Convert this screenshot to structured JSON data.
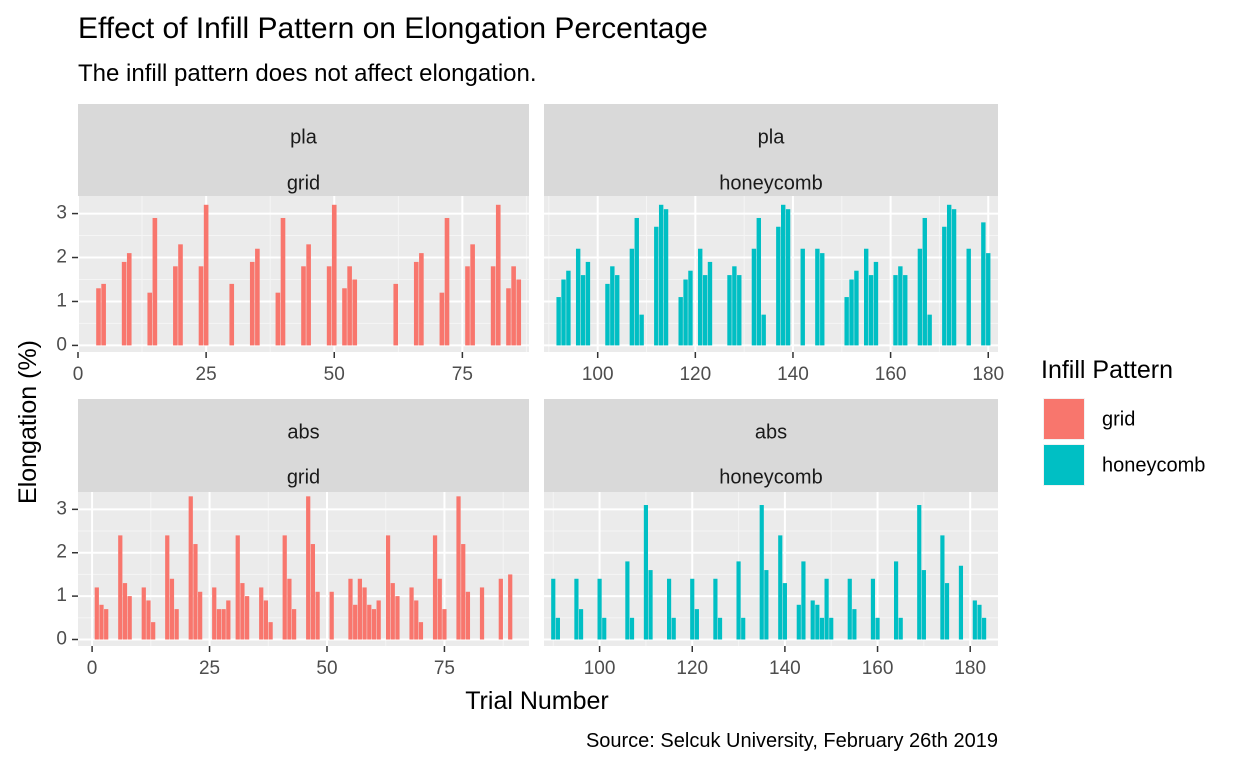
{
  "chart_data": {
    "type": "bar",
    "title": "Effect of Infill Pattern on Elongation Percentage",
    "subtitle": "The infill pattern does not affect elongation.",
    "caption": "Source: Selcuk University, February 26th 2019",
    "xlabel": "Trial Number",
    "ylabel": "Elongation (%)",
    "legend": {
      "title": "Infill Pattern",
      "placement": "right",
      "entries": [
        {
          "name": "grid",
          "color": "#F8766D"
        },
        {
          "name": "honeycomb",
          "color": "#00BFC4"
        }
      ]
    },
    "grid": true,
    "ylim": [
      -0.15,
      3.4
    ],
    "y_ticks": [
      0,
      1,
      2,
      3
    ],
    "panels": [
      {
        "row": "pla",
        "col": "grid",
        "fill": "grid",
        "xlim": [
          0,
          88
        ],
        "x_ticks": [
          0,
          25,
          50,
          75
        ],
        "bars": [
          {
            "x": 4,
            "y": 1.3
          },
          {
            "x": 5,
            "y": 1.4
          },
          {
            "x": 9,
            "y": 1.9
          },
          {
            "x": 10,
            "y": 2.1
          },
          {
            "x": 14,
            "y": 1.2
          },
          {
            "x": 15,
            "y": 2.9
          },
          {
            "x": 19,
            "y": 1.8
          },
          {
            "x": 20,
            "y": 2.3
          },
          {
            "x": 24,
            "y": 1.8
          },
          {
            "x": 25,
            "y": 3.2
          },
          {
            "x": 30,
            "y": 1.4
          },
          {
            "x": 34,
            "y": 1.9
          },
          {
            "x": 35,
            "y": 2.2
          },
          {
            "x": 39,
            "y": 1.2
          },
          {
            "x": 40,
            "y": 2.9
          },
          {
            "x": 44,
            "y": 1.8
          },
          {
            "x": 45,
            "y": 2.3
          },
          {
            "x": 49,
            "y": 1.8
          },
          {
            "x": 50,
            "y": 3.2
          },
          {
            "x": 52,
            "y": 1.3
          },
          {
            "x": 53,
            "y": 1.8
          },
          {
            "x": 54,
            "y": 1.5
          },
          {
            "x": 62,
            "y": 1.4
          },
          {
            "x": 66,
            "y": 1.9
          },
          {
            "x": 67,
            "y": 2.1
          },
          {
            "x": 71,
            "y": 1.2
          },
          {
            "x": 72,
            "y": 2.9
          },
          {
            "x": 76,
            "y": 1.8
          },
          {
            "x": 77,
            "y": 2.3
          },
          {
            "x": 81,
            "y": 1.8
          },
          {
            "x": 82,
            "y": 3.2
          },
          {
            "x": 84,
            "y": 1.3
          },
          {
            "x": 85,
            "y": 1.8
          },
          {
            "x": 86,
            "y": 1.5
          }
        ]
      },
      {
        "row": "pla",
        "col": "honeycomb",
        "fill": "honeycomb",
        "xlim": [
          89,
          182
        ],
        "x_ticks": [
          100,
          120,
          140,
          160,
          180
        ],
        "bars": [
          {
            "x": 92,
            "y": 1.1
          },
          {
            "x": 93,
            "y": 1.5
          },
          {
            "x": 94,
            "y": 1.7
          },
          {
            "x": 96,
            "y": 2.2
          },
          {
            "x": 97,
            "y": 1.6
          },
          {
            "x": 98,
            "y": 1.9
          },
          {
            "x": 102,
            "y": 1.4
          },
          {
            "x": 103,
            "y": 1.8
          },
          {
            "x": 104,
            "y": 1.6
          },
          {
            "x": 107,
            "y": 2.2
          },
          {
            "x": 108,
            "y": 2.9
          },
          {
            "x": 109,
            "y": 0.7
          },
          {
            "x": 112,
            "y": 2.7
          },
          {
            "x": 113,
            "y": 3.2
          },
          {
            "x": 114,
            "y": 3.1
          },
          {
            "x": 117,
            "y": 1.1
          },
          {
            "x": 118,
            "y": 1.5
          },
          {
            "x": 119,
            "y": 1.7
          },
          {
            "x": 121,
            "y": 2.2
          },
          {
            "x": 122,
            "y": 1.6
          },
          {
            "x": 123,
            "y": 1.9
          },
          {
            "x": 127,
            "y": 1.6
          },
          {
            "x": 128,
            "y": 1.8
          },
          {
            "x": 129,
            "y": 1.6
          },
          {
            "x": 132,
            "y": 2.2
          },
          {
            "x": 133,
            "y": 2.9
          },
          {
            "x": 134,
            "y": 0.7
          },
          {
            "x": 137,
            "y": 2.7
          },
          {
            "x": 138,
            "y": 3.2
          },
          {
            "x": 139,
            "y": 3.1
          },
          {
            "x": 142,
            "y": 2.2
          },
          {
            "x": 145,
            "y": 2.2
          },
          {
            "x": 146,
            "y": 2.1
          },
          {
            "x": 151,
            "y": 1.1
          },
          {
            "x": 152,
            "y": 1.5
          },
          {
            "x": 153,
            "y": 1.7
          },
          {
            "x": 155,
            "y": 2.2
          },
          {
            "x": 156,
            "y": 1.6
          },
          {
            "x": 157,
            "y": 1.9
          },
          {
            "x": 161,
            "y": 1.6
          },
          {
            "x": 162,
            "y": 1.8
          },
          {
            "x": 163,
            "y": 1.6
          },
          {
            "x": 166,
            "y": 2.2
          },
          {
            "x": 167,
            "y": 2.9
          },
          {
            "x": 168,
            "y": 0.7
          },
          {
            "x": 171,
            "y": 2.7
          },
          {
            "x": 172,
            "y": 3.2
          },
          {
            "x": 173,
            "y": 3.1
          },
          {
            "x": 176,
            "y": 2.2
          },
          {
            "x": 179,
            "y": 2.8
          },
          {
            "x": 180,
            "y": 2.1
          }
        ]
      },
      {
        "row": "abs",
        "col": "grid",
        "fill": "grid",
        "xlim": [
          -3,
          93
        ],
        "x_ticks": [
          0,
          25,
          50,
          75
        ],
        "bars": [
          {
            "x": 1,
            "y": 1.2
          },
          {
            "x": 2,
            "y": 0.8
          },
          {
            "x": 3,
            "y": 0.7
          },
          {
            "x": 6,
            "y": 2.4
          },
          {
            "x": 7,
            "y": 1.3
          },
          {
            "x": 8,
            "y": 1.0
          },
          {
            "x": 11,
            "y": 1.2
          },
          {
            "x": 12,
            "y": 0.9
          },
          {
            "x": 13,
            "y": 0.4
          },
          {
            "x": 16,
            "y": 2.4
          },
          {
            "x": 17,
            "y": 1.4
          },
          {
            "x": 18,
            "y": 0.7
          },
          {
            "x": 21,
            "y": 3.3
          },
          {
            "x": 22,
            "y": 2.2
          },
          {
            "x": 23,
            "y": 1.1
          },
          {
            "x": 26,
            "y": 1.2
          },
          {
            "x": 27,
            "y": 0.7
          },
          {
            "x": 28,
            "y": 0.7
          },
          {
            "x": 29,
            "y": 0.9
          },
          {
            "x": 31,
            "y": 2.4
          },
          {
            "x": 32,
            "y": 1.3
          },
          {
            "x": 33,
            "y": 1.0
          },
          {
            "x": 36,
            "y": 1.2
          },
          {
            "x": 37,
            "y": 0.9
          },
          {
            "x": 38,
            "y": 0.4
          },
          {
            "x": 41,
            "y": 2.4
          },
          {
            "x": 42,
            "y": 1.4
          },
          {
            "x": 43,
            "y": 0.7
          },
          {
            "x": 46,
            "y": 3.3
          },
          {
            "x": 47,
            "y": 2.2
          },
          {
            "x": 48,
            "y": 1.1
          },
          {
            "x": 51,
            "y": 1.1
          },
          {
            "x": 55,
            "y": 1.4
          },
          {
            "x": 56,
            "y": 0.8
          },
          {
            "x": 57,
            "y": 1.4
          },
          {
            "x": 58,
            "y": 1.2
          },
          {
            "x": 59,
            "y": 0.8
          },
          {
            "x": 60,
            "y": 0.7
          },
          {
            "x": 61,
            "y": 0.9
          },
          {
            "x": 63,
            "y": 2.4
          },
          {
            "x": 64,
            "y": 1.3
          },
          {
            "x": 65,
            "y": 1.0
          },
          {
            "x": 68,
            "y": 1.2
          },
          {
            "x": 69,
            "y": 0.9
          },
          {
            "x": 70,
            "y": 0.4
          },
          {
            "x": 73,
            "y": 2.4
          },
          {
            "x": 74,
            "y": 1.4
          },
          {
            "x": 75,
            "y": 0.7
          },
          {
            "x": 78,
            "y": 3.3
          },
          {
            "x": 79,
            "y": 2.2
          },
          {
            "x": 80,
            "y": 1.1
          },
          {
            "x": 83,
            "y": 1.2
          },
          {
            "x": 87,
            "y": 1.4
          },
          {
            "x": 89,
            "y": 1.5
          }
        ]
      },
      {
        "row": "abs",
        "col": "honeycomb",
        "fill": "honeycomb",
        "xlim": [
          88,
          186
        ],
        "x_ticks": [
          100,
          120,
          140,
          160,
          180
        ],
        "bars": [
          {
            "x": 90,
            "y": 1.4
          },
          {
            "x": 91,
            "y": 0.5
          },
          {
            "x": 95,
            "y": 1.4
          },
          {
            "x": 96,
            "y": 0.7
          },
          {
            "x": 100,
            "y": 1.4
          },
          {
            "x": 101,
            "y": 0.5
          },
          {
            "x": 106,
            "y": 1.8
          },
          {
            "x": 107,
            "y": 0.5
          },
          {
            "x": 110,
            "y": 3.1
          },
          {
            "x": 111,
            "y": 1.6
          },
          {
            "x": 115,
            "y": 1.4
          },
          {
            "x": 116,
            "y": 0.5
          },
          {
            "x": 120,
            "y": 1.4
          },
          {
            "x": 121,
            "y": 0.7
          },
          {
            "x": 125,
            "y": 1.4
          },
          {
            "x": 126,
            "y": 0.5
          },
          {
            "x": 130,
            "y": 1.8
          },
          {
            "x": 131,
            "y": 0.5
          },
          {
            "x": 135,
            "y": 3.1
          },
          {
            "x": 136,
            "y": 1.6
          },
          {
            "x": 139,
            "y": 2.4
          },
          {
            "x": 140,
            "y": 1.3
          },
          {
            "x": 143,
            "y": 0.8
          },
          {
            "x": 144,
            "y": 1.8
          },
          {
            "x": 146,
            "y": 0.9
          },
          {
            "x": 147,
            "y": 0.8
          },
          {
            "x": 148,
            "y": 0.5
          },
          {
            "x": 149,
            "y": 1.4
          },
          {
            "x": 150,
            "y": 0.5
          },
          {
            "x": 154,
            "y": 1.4
          },
          {
            "x": 155,
            "y": 0.7
          },
          {
            "x": 159,
            "y": 1.4
          },
          {
            "x": 160,
            "y": 0.5
          },
          {
            "x": 164,
            "y": 1.8
          },
          {
            "x": 165,
            "y": 0.5
          },
          {
            "x": 169,
            "y": 3.1
          },
          {
            "x": 170,
            "y": 1.6
          },
          {
            "x": 174,
            "y": 2.4
          },
          {
            "x": 175,
            "y": 1.3
          },
          {
            "x": 178,
            "y": 1.7
          },
          {
            "x": 181,
            "y": 0.9
          },
          {
            "x": 182,
            "y": 0.8
          },
          {
            "x": 183,
            "y": 0.5
          }
        ]
      }
    ]
  }
}
